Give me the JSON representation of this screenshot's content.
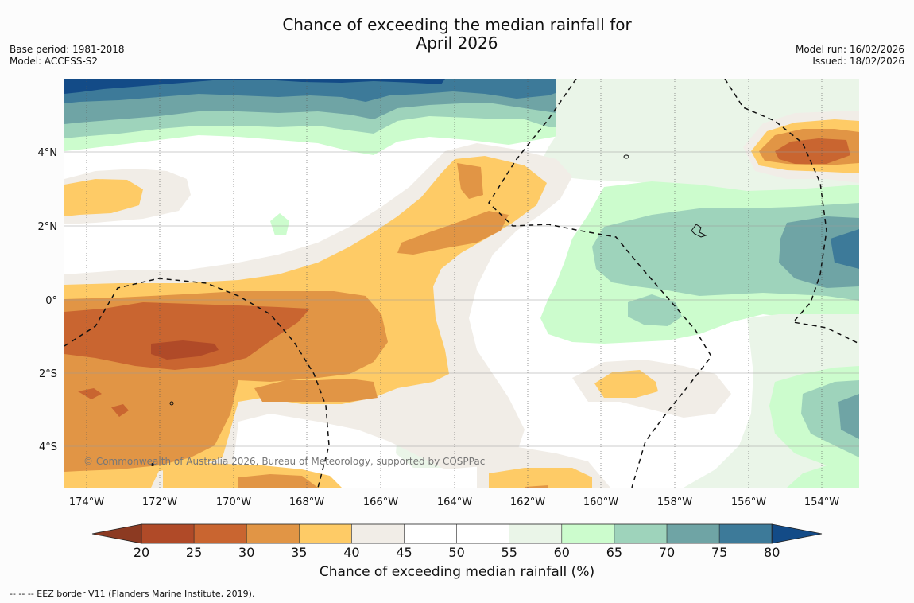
{
  "title": {
    "line1": "Chance of exceeding the median rainfall for",
    "line2": "April 2026"
  },
  "meta_left": {
    "base_period": "Base period: 1981-2018",
    "model": "Model: ACCESS-S2"
  },
  "meta_right": {
    "model_run": "Model run: 16/02/2026",
    "issued": "Issued: 18/02/2026"
  },
  "map": {
    "lon_labels": [
      "174°W",
      "172°W",
      "170°W",
      "168°W",
      "166°W",
      "164°W",
      "162°W",
      "160°W",
      "158°W",
      "156°W",
      "154°W"
    ],
    "lat_labels": [
      "4°N",
      "2°N",
      "0°",
      "2°S",
      "4°S"
    ],
    "copyright": "© Commonwealth of Australia 2026, Bureau of Meteorology, supported by COSPPac",
    "colors": {
      "below_20": "#8c3a22",
      "c20_25": "#b04a28",
      "c25_30": "#c96530",
      "c30_35": "#e19545",
      "c35_40": "#fecb66",
      "c40_45": "#f1ede7",
      "c45_50": "#ffffff",
      "c50_55": "#ffffff",
      "c55_60": "#eaf5e8",
      "c60_65": "#ccfccd",
      "c65_70": "#9ed3bb",
      "c70_75": "#6fa4a5",
      "c75_80": "#3d7a99",
      "above_80": "#134b87"
    }
  },
  "colorbar": {
    "ticks": [
      "20",
      "25",
      "30",
      "35",
      "40",
      "45",
      "50",
      "55",
      "60",
      "65",
      "70",
      "75",
      "80"
    ],
    "label": "Chance of exceeding median rainfall (%)"
  },
  "footnote": "--  --  -- EEZ border V11 (Flanders Marine Institute, 2019)."
}
